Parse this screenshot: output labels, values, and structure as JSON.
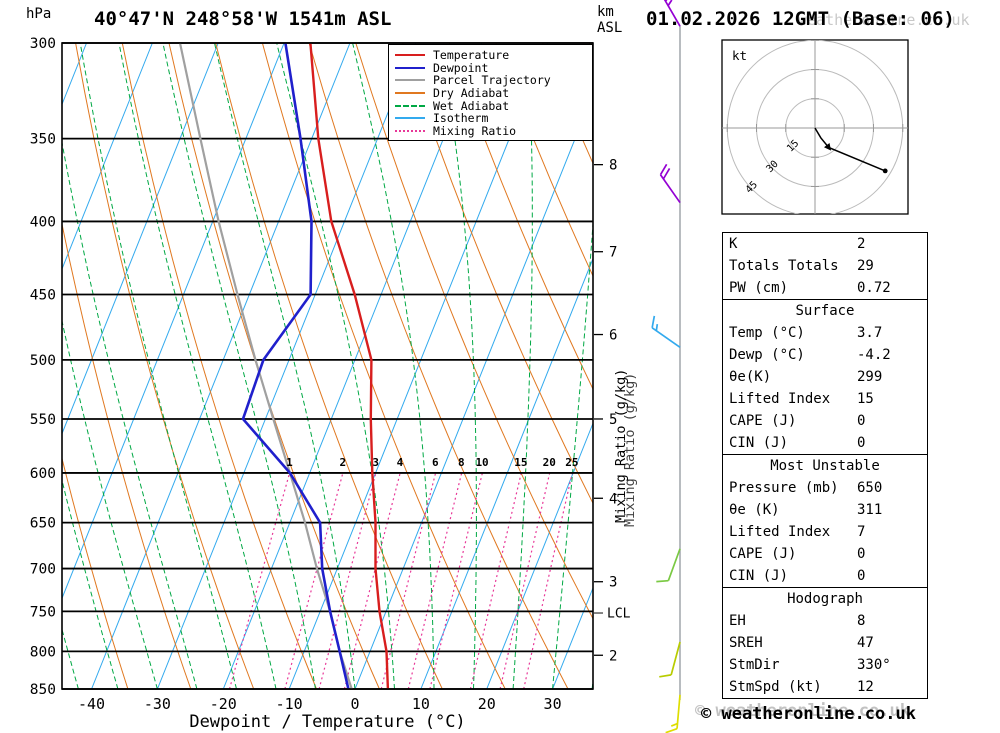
{
  "header": {
    "station": "40°47'N 248°58'W 1541m ASL",
    "datetime": "01.02.2026 12GMT (Base: 06)",
    "pressure_unit": "hPa",
    "km_label": "km",
    "asl_label": "ASL"
  },
  "axes": {
    "xlabel": "Dewpoint / Temperature (°C)",
    "mixing_label": "Mixing Ratio (g/kg)",
    "pressure_ticks": [
      300,
      350,
      400,
      450,
      500,
      550,
      600,
      650,
      700,
      750,
      800,
      850
    ],
    "temp_ticks": [
      -40,
      -30,
      -20,
      -10,
      0,
      10,
      20,
      30
    ],
    "km_ticks": [
      8,
      7,
      6,
      5,
      4,
      3,
      2
    ],
    "mixing_ratios": [
      1,
      2,
      3,
      4,
      6,
      8,
      10,
      15,
      20,
      25
    ]
  },
  "legend": [
    {
      "label": "Temperature",
      "color": "#d81e1e",
      "style": "solid"
    },
    {
      "label": "Dewpoint",
      "color": "#2020cc",
      "style": "solid"
    },
    {
      "label": "Parcel Trajectory",
      "color": "#a0a0a0",
      "style": "solid"
    },
    {
      "label": "Dry Adiabat",
      "color": "#e07820",
      "style": "solid"
    },
    {
      "label": "Wet Adiabat",
      "color": "#00a844",
      "style": "dashed"
    },
    {
      "label": "Isotherm",
      "color": "#33aaee",
      "style": "solid"
    },
    {
      "label": "Mixing Ratio",
      "color": "#e83898",
      "style": "dotted"
    }
  ],
  "chart_data": {
    "type": "line",
    "variant": "skew-t-log-p",
    "title": "40°47'N 248°58'W 1541m ASL",
    "xlabel": "Dewpoint / Temperature (°C)",
    "ylabel": "hPa",
    "x_range_c": [
      -45,
      37
    ],
    "pressure_range_hpa": [
      300,
      850
    ],
    "grid": true,
    "legend_position": "top-right",
    "pressure_levels_hpa": [
      850,
      800,
      750,
      700,
      650,
      600,
      550,
      500,
      450,
      400,
      350,
      300
    ],
    "series": [
      {
        "name": "Temperature",
        "units": "°C",
        "values": [
          5,
          2.5,
          -1,
          -4.2,
          -7,
          -10.5,
          -14,
          -17.5,
          -24,
          -32,
          -39,
          -46
        ]
      },
      {
        "name": "Dewpoint",
        "units": "°C",
        "values": [
          -1,
          -4.6,
          -8.5,
          -12.3,
          -15.4,
          -23,
          -33.4,
          -33.9,
          -30.7,
          -35,
          -41.7,
          -49.8
        ]
      },
      {
        "name": "Parcel Trajectory",
        "units": "°C",
        "values": [
          -0.5,
          -4.6,
          -8.5,
          -13.1,
          -17.7,
          -23,
          -28.8,
          -35.1,
          -41.8,
          -49.1,
          -56.9,
          -65.8
        ]
      }
    ]
  },
  "wind_barbs": [
    {
      "pressure_hpa": 292,
      "dir_deg": 330,
      "speed_kt": 25,
      "color": "#9400d3"
    },
    {
      "pressure_hpa": 388,
      "dir_deg": 325,
      "speed_kt": 20,
      "color": "#9400d3"
    },
    {
      "pressure_hpa": 490,
      "dir_deg": 305,
      "speed_kt": 15,
      "color": "#33aaee"
    },
    {
      "pressure_hpa": 678,
      "dir_deg": 200,
      "speed_kt": 10,
      "color": "#7ac943"
    },
    {
      "pressure_hpa": 788,
      "dir_deg": 195,
      "speed_kt": 10,
      "color": "#b8cc00"
    },
    {
      "pressure_hpa": 858,
      "dir_deg": 185,
      "speed_kt": 15,
      "color": "#dede00"
    }
  ],
  "hodograph": {
    "unit": "kt",
    "rings_kt": [
      15,
      30,
      45
    ],
    "trace_kt": [
      {
        "u": 0,
        "v": 0
      },
      {
        "u": 3,
        "v": -5
      },
      {
        "u": 7,
        "v": -10
      },
      {
        "u": 36,
        "v": -22
      }
    ],
    "storm_motion": {
      "dir_deg": 330,
      "speed_kt": 12
    }
  },
  "indices": {
    "sections": [
      {
        "title": "",
        "rows": [
          [
            "K",
            "2"
          ],
          [
            "Totals Totals",
            "29"
          ],
          [
            "PW (cm)",
            "0.72"
          ]
        ]
      },
      {
        "title": "Surface",
        "rows": [
          [
            "Temp (°C)",
            "3.7"
          ],
          [
            "Dewp (°C)",
            "-4.2"
          ],
          [
            "θe(K)",
            "299"
          ],
          [
            "Lifted Index",
            "15"
          ],
          [
            "CAPE (J)",
            "0"
          ],
          [
            "CIN (J)",
            "0"
          ]
        ]
      },
      {
        "title": "Most Unstable",
        "rows": [
          [
            "Pressure (mb)",
            "650"
          ],
          [
            "θe (K)",
            "311"
          ],
          [
            "Lifted Index",
            "7"
          ],
          [
            "CAPE (J)",
            "0"
          ],
          [
            "CIN (J)",
            "0"
          ]
        ]
      },
      {
        "title": "Hodograph",
        "rows": [
          [
            "EH",
            "8"
          ],
          [
            "SREH",
            "47"
          ],
          [
            "StmDir",
            "330°"
          ],
          [
            "StmSpd (kt)",
            "12"
          ]
        ]
      }
    ]
  },
  "lcl": {
    "label": "LCL",
    "pressure_hpa": 752
  },
  "footer": {
    "copyright": "© weatheronline.co.uk",
    "watermark": "weatheronline.co.uk"
  }
}
